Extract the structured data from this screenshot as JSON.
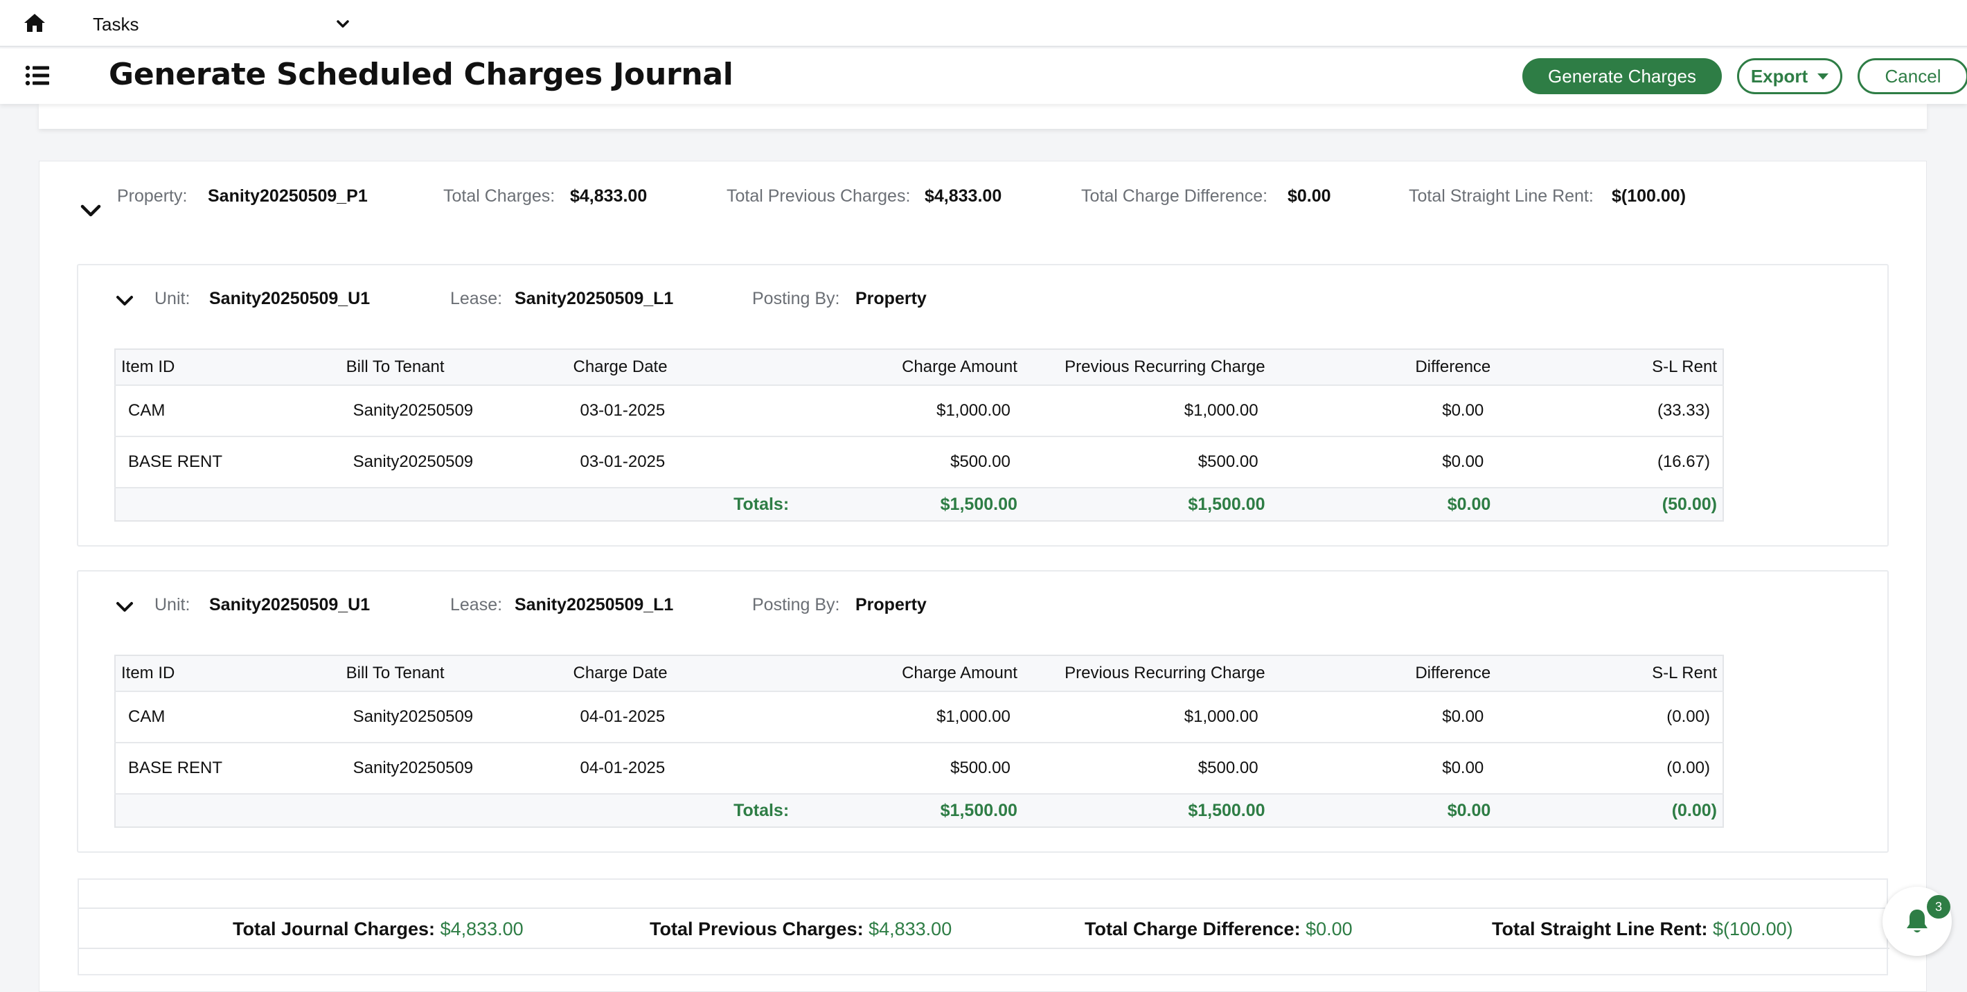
{
  "topbar": {
    "tasks_label": "Tasks"
  },
  "header": {
    "title": "Generate Scheduled Charges Journal",
    "generate_label": "Generate Charges",
    "export_label": "Export",
    "cancel_label": "Cancel"
  },
  "property": {
    "property_label": "Property:",
    "property_value": "Sanity20250509_P1",
    "total_charges_label": "Total Charges:",
    "total_charges_value": "$4,833.00",
    "total_previous_label": "Total Previous Charges:",
    "total_previous_value": "$4,833.00",
    "total_difference_label": "Total Charge Difference:",
    "total_difference_value": "$0.00",
    "total_slr_label": "Total Straight Line Rent:",
    "total_slr_value": "$(100.00)"
  },
  "columns": [
    "Item ID",
    "Bill To Tenant",
    "Charge Date",
    "Charge Amount",
    "Previous Recurring Charge",
    "Difference",
    "S-L Rent"
  ],
  "units": [
    {
      "unit_label": "Unit:",
      "unit_value": "Sanity20250509_U1",
      "lease_label": "Lease:",
      "lease_value": "Sanity20250509_L1",
      "posting_label": "Posting By:",
      "posting_value": "Property",
      "rows": [
        [
          "CAM",
          "Sanity20250509",
          "03-01-2025",
          "$1,000.00",
          "$1,000.00",
          "$0.00",
          "(33.33)"
        ],
        [
          "BASE RENT",
          "Sanity20250509",
          "03-01-2025",
          "$500.00",
          "$500.00",
          "$0.00",
          "(16.67)"
        ]
      ],
      "totals": {
        "label": "Totals:",
        "amount": "$1,500.00",
        "previous": "$1,500.00",
        "difference": "$0.00",
        "slr": "(50.00)"
      }
    },
    {
      "unit_label": "Unit:",
      "unit_value": "Sanity20250509_U1",
      "lease_label": "Lease:",
      "lease_value": "Sanity20250509_L1",
      "posting_label": "Posting By:",
      "posting_value": "Property",
      "rows": [
        [
          "CAM",
          "Sanity20250509",
          "04-01-2025",
          "$1,000.00",
          "$1,000.00",
          "$0.00",
          "(0.00)"
        ],
        [
          "BASE RENT",
          "Sanity20250509",
          "04-01-2025",
          "$500.00",
          "$500.00",
          "$0.00",
          "(0.00)"
        ]
      ],
      "totals": {
        "label": "Totals:",
        "amount": "$1,500.00",
        "previous": "$1,500.00",
        "difference": "$0.00",
        "slr": "(0.00)"
      }
    }
  ],
  "summary": {
    "journal_label": "Total Journal Charges:",
    "journal_value": "$4,833.00",
    "previous_label": "Total Previous Charges:",
    "previous_value": "$4,833.00",
    "difference_label": "Total Charge Difference:",
    "difference_value": "$0.00",
    "slr_label": "Total Straight Line Rent:",
    "slr_value": "$(100.00)"
  },
  "notifications": {
    "count": "3"
  },
  "colors": {
    "accent": "#2e7d45",
    "label_gray": "#6b6f75",
    "background": "#f4f5f7"
  }
}
